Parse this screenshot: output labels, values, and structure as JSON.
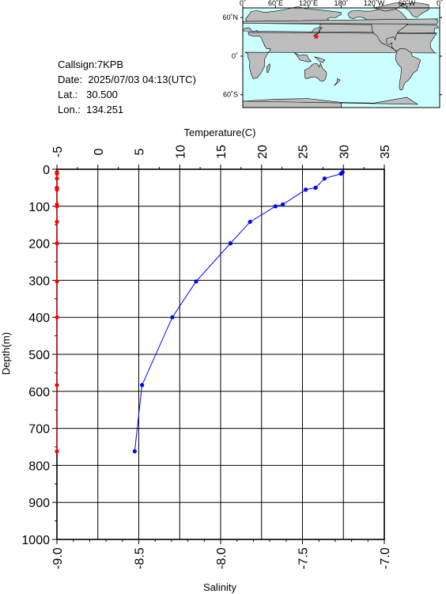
{
  "station": {
    "callsign_label": "Callsign:",
    "callsign": "7KPB",
    "date_label": "Date:",
    "date": "2025/07/03 04:13(UTC)",
    "lat_label": "Lat.:",
    "lat": "30.500",
    "lon_label": "Lon.:",
    "lon": "134.251"
  },
  "map": {
    "lon_labels": [
      "0˚",
      "60˚E",
      "120˚E",
      "180˚",
      "120˚W",
      "60˚W",
      "0˚"
    ],
    "lat_labels": [
      "60˚N",
      "0˚",
      "60˚S"
    ],
    "station_marker": {
      "lon": 134.251,
      "lat": 30.5
    },
    "colors": {
      "ocean": "#ccffff",
      "land": "#bdbdbd",
      "marker": "#ff0000"
    }
  },
  "chart_data": {
    "type": "line",
    "ylabel": "Depth(m)",
    "ylim": [
      1000,
      0
    ],
    "yticks": [
      0,
      100,
      200,
      300,
      400,
      500,
      600,
      700,
      800,
      900,
      1000
    ],
    "grid": true,
    "top_axis": {
      "label": "Temperature(C)",
      "lim": [
        -5,
        35
      ],
      "ticks": [
        -5,
        0,
        5,
        10,
        15,
        20,
        25,
        30,
        35
      ]
    },
    "bottom_axis": {
      "label": "Salinity",
      "lim": [
        -9.0,
        -7.0
      ],
      "ticks": [
        "-9.0",
        "-8.5",
        "-8.0",
        "-7.5",
        "-7.0"
      ],
      "tick_values": [
        -9.0,
        -8.5,
        -8.0,
        -7.5,
        -7.0
      ]
    },
    "series": [
      {
        "axis": "top",
        "color": "#0000ff",
        "depth": [
          8,
          12,
          25,
          50,
          55,
          95,
          100,
          142,
          200,
          303,
          400,
          583,
          762
        ],
        "values": [
          29.9,
          29.7,
          27.7,
          26.6,
          25.4,
          22.6,
          21.7,
          18.6,
          16.2,
          12.0,
          9.1,
          5.4,
          4.5
        ]
      },
      {
        "axis": "bottom",
        "color": "#ff0000",
        "depth": [
          8,
          12,
          25,
          50,
          55,
          95,
          100,
          142,
          200,
          303,
          400,
          583,
          762
        ],
        "values": [
          -9.0,
          -9.0,
          -9.0,
          -9.0,
          -9.0,
          -9.0,
          -9.0,
          -9.0,
          -9.0,
          -9.0,
          -9.0,
          -9.0,
          -9.0
        ]
      }
    ]
  }
}
